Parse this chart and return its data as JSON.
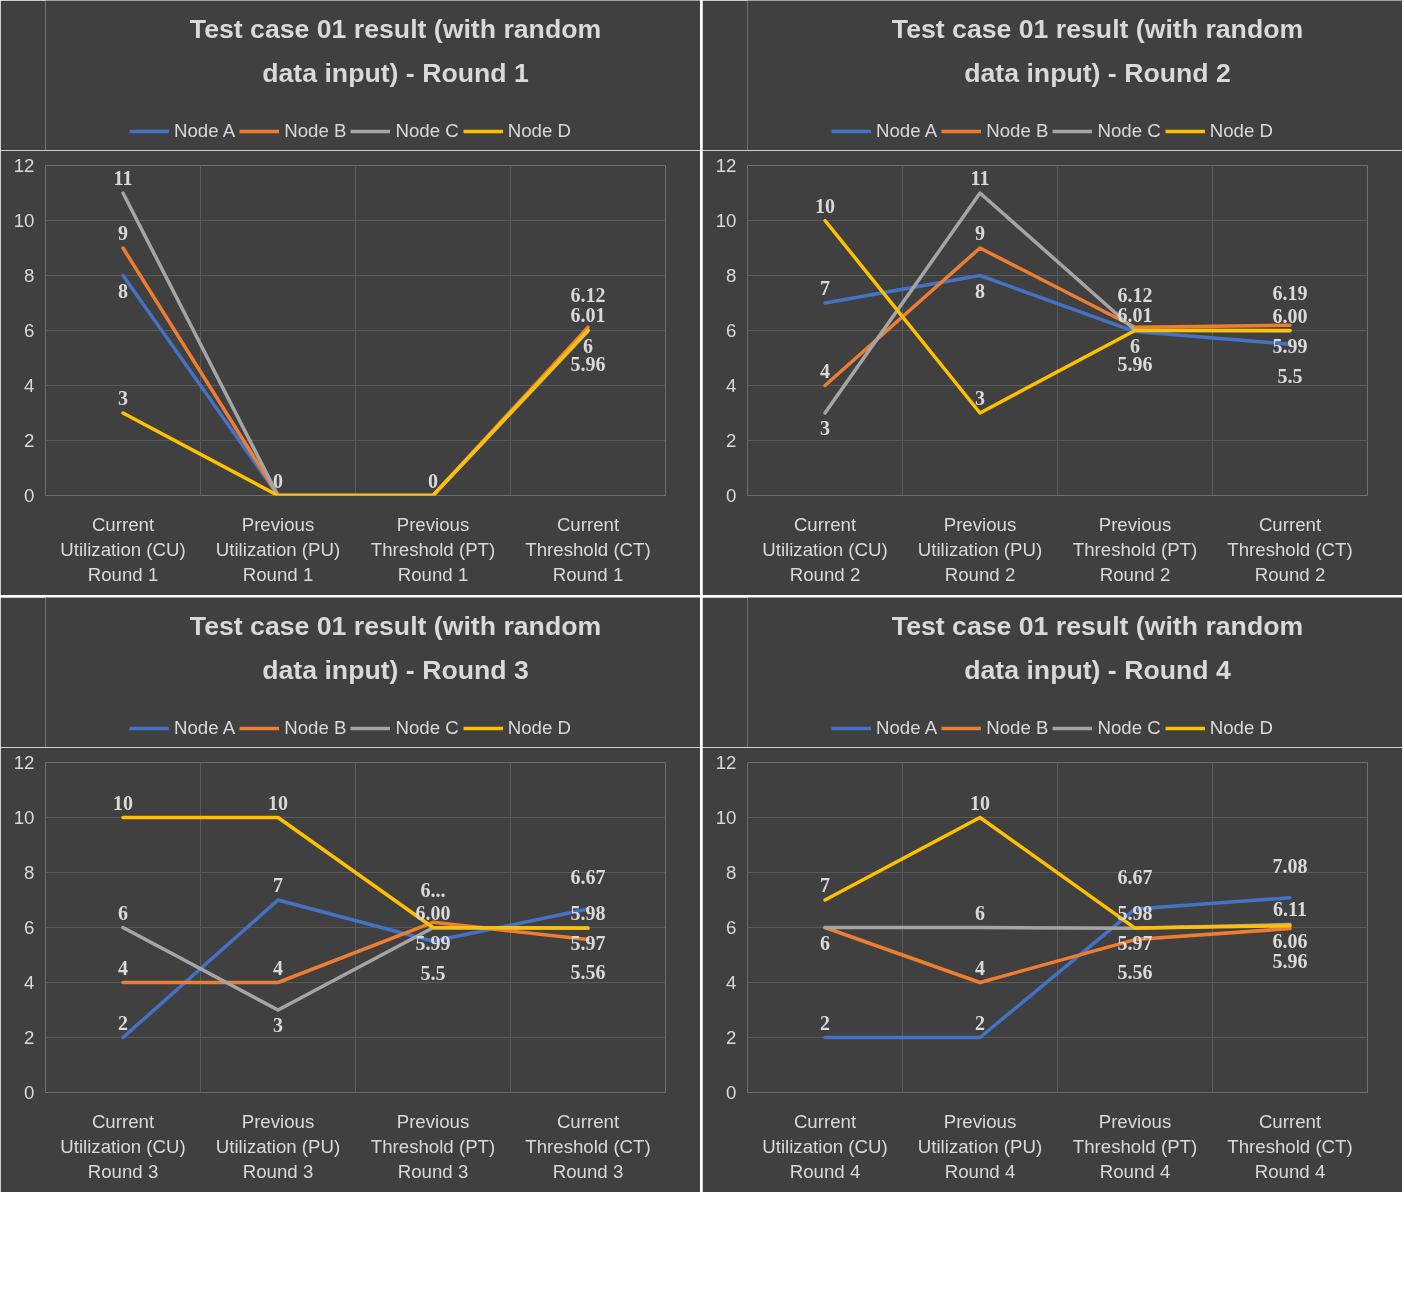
{
  "chart_data": [
    {
      "type": "line",
      "title": "Test case 01 result (with random data input) - Round 1",
      "categories": [
        "Current Utilization (CU) Round 1",
        "Previous Utilization (PU) Round 1",
        "Previous Threshold (PT) Round 1",
        "Current Threshold (CT) Round 1"
      ],
      "ylim": [
        0,
        12
      ],
      "yticks": [
        0,
        2,
        4,
        6,
        8,
        10,
        12
      ],
      "grid": true,
      "legend": "top",
      "series": [
        {
          "name": "Node A",
          "color": "#4472c4",
          "values": [
            8,
            0,
            0,
            5.96
          ],
          "value_labels": [
            "8",
            null,
            null,
            "5.96"
          ]
        },
        {
          "name": "Node B",
          "color": "#ed7d31",
          "values": [
            9,
            0,
            0,
            6.12
          ],
          "value_labels": [
            "9",
            null,
            null,
            "6.12"
          ]
        },
        {
          "name": "Node C",
          "color": "#a5a5a5",
          "values": [
            11,
            0,
            0,
            6.01
          ],
          "value_labels": [
            "11",
            null,
            null,
            "6.01"
          ]
        },
        {
          "name": "Node D",
          "color": "#ffc000",
          "values": [
            3,
            0,
            0,
            6
          ],
          "value_labels": [
            "3",
            "0",
            "0",
            "6"
          ]
        }
      ]
    },
    {
      "type": "line",
      "title": "Test case 01 result (with random data input) - Round 2",
      "categories": [
        "Current Utilization (CU) Round 2",
        "Previous Utilization (PU) Round 2",
        "Previous Threshold (PT) Round 2",
        "Current Threshold (CT) Round 2"
      ],
      "ylim": [
        0,
        12
      ],
      "yticks": [
        0,
        2,
        4,
        6,
        8,
        10,
        12
      ],
      "grid": true,
      "legend": "top",
      "series": [
        {
          "name": "Node A",
          "color": "#4472c4",
          "values": [
            7,
            8,
            5.96,
            5.5
          ],
          "value_labels": [
            "7",
            "8",
            "5.96",
            "5.5"
          ]
        },
        {
          "name": "Node B",
          "color": "#ed7d31",
          "values": [
            4,
            9,
            6.12,
            6.19
          ],
          "value_labels": [
            "4",
            "9",
            "6.12",
            "6.19"
          ]
        },
        {
          "name": "Node C",
          "color": "#a5a5a5",
          "values": [
            3,
            11,
            6.01,
            5.99
          ],
          "value_labels": [
            "3",
            "11",
            "6.01",
            "5.99"
          ]
        },
        {
          "name": "Node D",
          "color": "#ffc000",
          "values": [
            10,
            3,
            6,
            6.0
          ],
          "value_labels": [
            "10",
            "3",
            "6",
            "6.00"
          ]
        }
      ]
    },
    {
      "type": "line",
      "title": "Test case 01 result (with random data input) - Round 3",
      "categories": [
        "Current Utilization (CU) Round 3",
        "Previous Utilization (PU) Round 3",
        "Previous Threshold (PT) Round 3",
        "Current Threshold (CT) Round 3"
      ],
      "ylim": [
        0,
        12
      ],
      "yticks": [
        0,
        2,
        4,
        6,
        8,
        10,
        12
      ],
      "grid": true,
      "legend": "top",
      "series": [
        {
          "name": "Node A",
          "color": "#4472c4",
          "values": [
            2,
            7,
            5.5,
            6.67
          ],
          "value_labels": [
            "2",
            "7",
            "5.5",
            "6.67"
          ]
        },
        {
          "name": "Node B",
          "color": "#ed7d31",
          "values": [
            4,
            4,
            6.19,
            5.56
          ],
          "value_labels": [
            "4",
            "4",
            "6...",
            "5.56"
          ]
        },
        {
          "name": "Node C",
          "color": "#a5a5a5",
          "values": [
            6,
            3,
            5.99,
            5.97
          ],
          "value_labels": [
            "6",
            "3",
            "5.99",
            "5.97"
          ]
        },
        {
          "name": "Node D",
          "color": "#ffc000",
          "values": [
            10,
            10,
            6.0,
            5.98
          ],
          "value_labels": [
            "10",
            "10",
            "6.00",
            "5.98"
          ]
        }
      ]
    },
    {
      "type": "line",
      "title": "Test case 01 result (with random data input) - Round 4",
      "categories": [
        "Current Utilization (CU) Round 4",
        "Previous Utilization (PU) Round 4",
        "Previous Threshold (PT) Round 4",
        "Current Threshold (CT) Round 4"
      ],
      "ylim": [
        0,
        12
      ],
      "yticks": [
        0,
        2,
        4,
        6,
        8,
        10,
        12
      ],
      "grid": true,
      "legend": "top",
      "series": [
        {
          "name": "Node A",
          "color": "#4472c4",
          "values": [
            2,
            2,
            6.67,
            7.08
          ],
          "value_labels": [
            "2",
            "2",
            "6.67",
            "7.08"
          ]
        },
        {
          "name": "Node B",
          "color": "#ed7d31",
          "values": [
            6,
            4,
            5.56,
            5.96
          ],
          "value_labels": [
            null,
            "4",
            "5.56",
            "5.96"
          ]
        },
        {
          "name": "Node C",
          "color": "#a5a5a5",
          "values": [
            6,
            6,
            5.97,
            6.11
          ],
          "value_labels": [
            "6",
            "6",
            "5.97",
            "6.11"
          ]
        },
        {
          "name": "Node D",
          "color": "#ffc000",
          "values": [
            7,
            10,
            5.98,
            6.06
          ],
          "value_labels": [
            "7",
            "10",
            "5.98",
            "6.06"
          ]
        }
      ]
    }
  ]
}
